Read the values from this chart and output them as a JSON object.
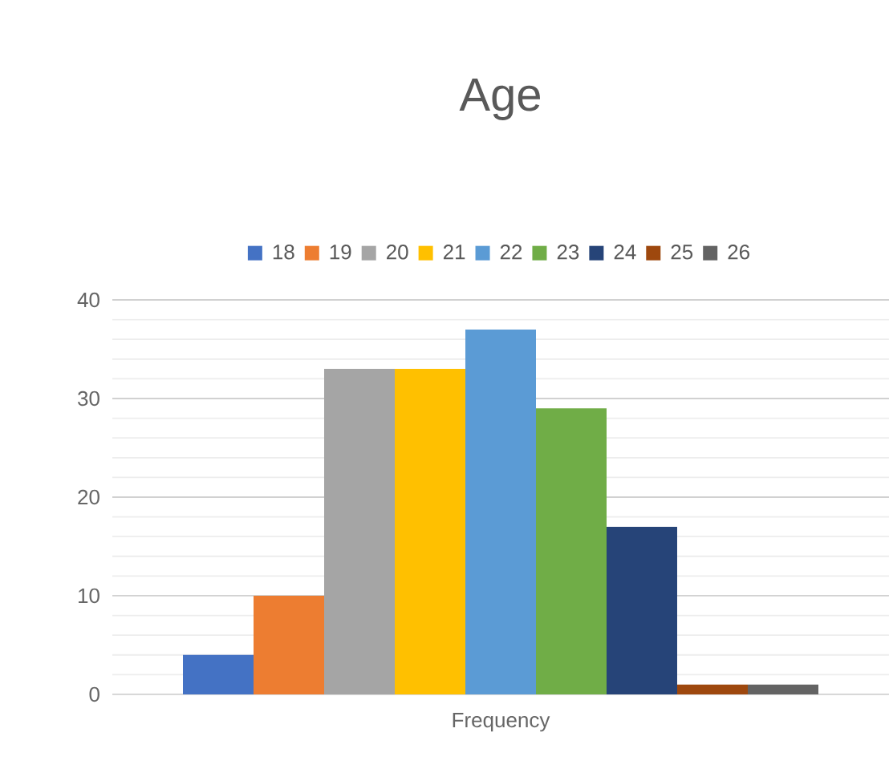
{
  "chart_data": {
    "type": "bar",
    "title": "Age",
    "categories": [
      "Frequency"
    ],
    "series": [
      {
        "name": "18",
        "color": "#4472c4",
        "values": [
          4
        ]
      },
      {
        "name": "19",
        "color": "#ed7d31",
        "values": [
          10
        ]
      },
      {
        "name": "20",
        "color": "#a5a5a5",
        "values": [
          33
        ]
      },
      {
        "name": "21",
        "color": "#ffc000",
        "values": [
          33
        ]
      },
      {
        "name": "22",
        "color": "#5b9bd5",
        "values": [
          37
        ]
      },
      {
        "name": "23",
        "color": "#70ad47",
        "values": [
          29
        ]
      },
      {
        "name": "24",
        "color": "#264478",
        "values": [
          17
        ]
      },
      {
        "name": "25",
        "color": "#9e480e",
        "values": [
          1
        ]
      },
      {
        "name": "26",
        "color": "#636363",
        "values": [
          1
        ]
      }
    ],
    "ylim": [
      0,
      40
    ],
    "yticks": [
      0,
      10,
      20,
      30,
      40
    ],
    "grid": "y",
    "legend": "top"
  }
}
